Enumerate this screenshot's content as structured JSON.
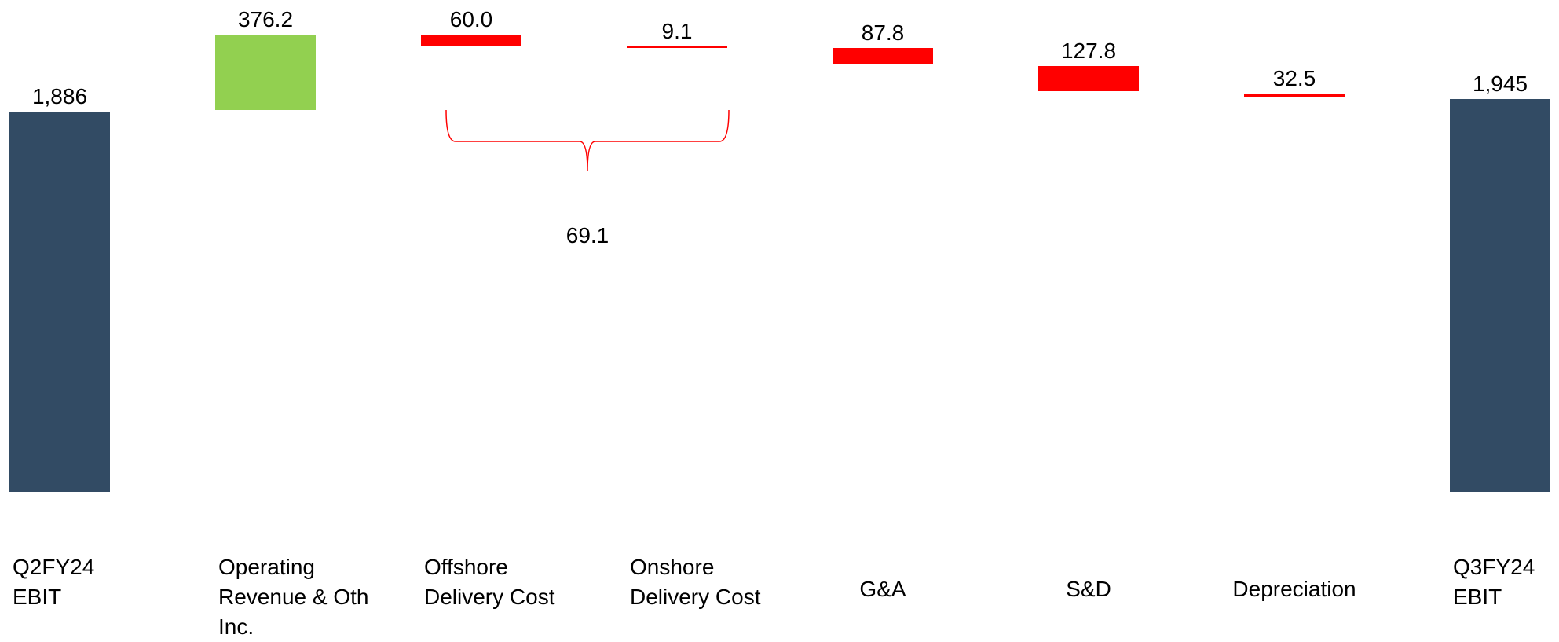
{
  "chart_data": {
    "type": "waterfall",
    "unit": "",
    "categories": [
      "Q2FY24\nEBIT",
      "Operating\nRevenue & Oth\nInc.",
      "Offshore\nDelivery Cost",
      "Onshore\nDelivery Cost",
      "G&A",
      "S&D",
      "Depreciation",
      "Q3FY24\nEBIT"
    ],
    "bars": [
      {
        "kind": "total",
        "value": 1886,
        "label": "1,886"
      },
      {
        "kind": "increase",
        "value": 376.2,
        "label": "376.2"
      },
      {
        "kind": "decrease",
        "value": 60.0,
        "label": "60.0"
      },
      {
        "kind": "decrease",
        "value": 9.1,
        "label": "9.1"
      },
      {
        "kind": "decrease",
        "value": 87.8,
        "label": "87.8"
      },
      {
        "kind": "decrease",
        "value": 127.8,
        "label": "127.8"
      },
      {
        "kind": "decrease",
        "value": 32.5,
        "label": "32.5"
      },
      {
        "kind": "total",
        "value": 1945,
        "label": "1,945"
      }
    ],
    "group_annotation": {
      "from_index": 2,
      "to_index": 3,
      "label": "69.1"
    },
    "colors": {
      "total": "#324b64",
      "increase": "#92d050",
      "decrease": "#ff0000",
      "annotation": "#ff0000"
    },
    "axes_visible": false,
    "grid": false,
    "legend": "none"
  }
}
